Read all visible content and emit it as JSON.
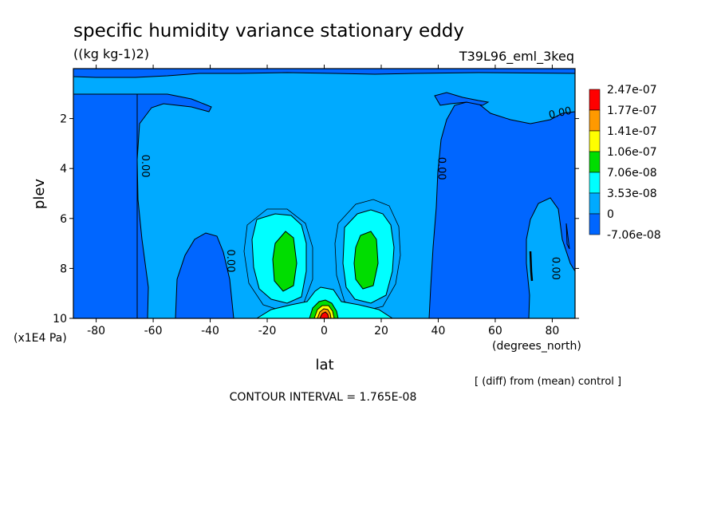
{
  "chart_data": {
    "type": "contour",
    "title": "specific humidity variance stationary eddy",
    "units": "((kg kg-1)2)",
    "experiment": "T39L96_eml_3keq",
    "xlabel": "lat",
    "xunits": "(degrees_north)",
    "ylabel": "plev",
    "yunits": "(x1E4 Pa)",
    "xlim": [
      -88,
      88
    ],
    "ylim": [
      10,
      0
    ],
    "xticks": [
      {
        "v": -80,
        "label": "-80"
      },
      {
        "v": -60,
        "label": "-60"
      },
      {
        "v": -40,
        "label": "-40"
      },
      {
        "v": -20,
        "label": "-20"
      },
      {
        "v": 0,
        "label": "0"
      },
      {
        "v": 20,
        "label": "20"
      },
      {
        "v": 40,
        "label": "40"
      },
      {
        "v": 60,
        "label": "60"
      },
      {
        "v": 80,
        "label": "80"
      }
    ],
    "yticks": [
      {
        "v": 2,
        "label": "2"
      },
      {
        "v": 4,
        "label": "4"
      },
      {
        "v": 6,
        "label": "6"
      },
      {
        "v": 8,
        "label": "8"
      },
      {
        "v": 10,
        "label": "10"
      }
    ],
    "contour_interval": "CONTOUR INTERVAL = 1.765E-08",
    "note": "[ (diff) from (mean) control ]",
    "contour_labels": [
      {
        "text": "0.00",
        "x": -64,
        "y": 3.9,
        "rot": 90
      },
      {
        "text": "0.00",
        "x": -34,
        "y": 7.7,
        "rot": 90
      },
      {
        "text": "0.00",
        "x": 40,
        "y": 4.0,
        "rot": 90
      },
      {
        "text": "0.00",
        "x": 80,
        "y": 8.0,
        "rot": 90
      },
      {
        "text": "0.00",
        "x": 83,
        "y": 1.9,
        "rot": -12
      }
    ],
    "colorbar": {
      "levels": [
        {
          "label": "2.47e-07",
          "color": "#ff0000"
        },
        {
          "label": "1.77e-07",
          "color": "#ff9900"
        },
        {
          "label": "1.41e-07",
          "color": "#ffff00"
        },
        {
          "label": "1.06e-07",
          "color": "#00dd00"
        },
        {
          "label": "7.06e-08",
          "color": "#00ffff"
        },
        {
          "label": "3.53e-08",
          "color": "#00aaff"
        },
        {
          "label": "0",
          "color": "#0066ff"
        },
        {
          "label": "-7.06e-08",
          "color": ""
        }
      ]
    },
    "fields": [
      {
        "level": "negative",
        "color": "#0066ff"
      },
      {
        "level": "zero",
        "color": "#00aaff"
      },
      {
        "level": "low",
        "color": "#00ffff"
      },
      {
        "level": "mid",
        "color": "#00dd00"
      },
      {
        "level": "high",
        "color": "#ffff00"
      },
      {
        "level": "higher",
        "color": "#ff9900"
      },
      {
        "level": "max",
        "color": "#ff0000"
      }
    ]
  }
}
